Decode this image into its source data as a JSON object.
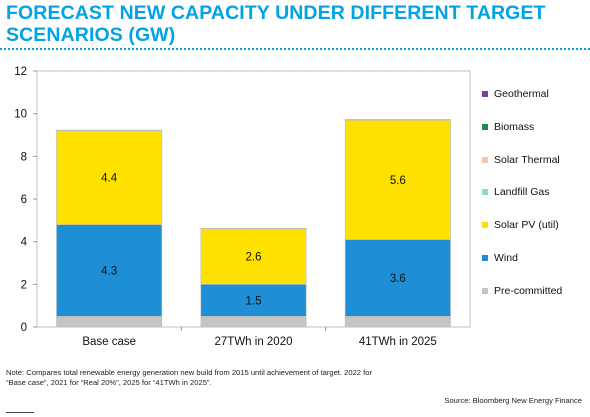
{
  "title": "FORECAST NEW CAPACITY UNDER DIFFERENT TARGET SCENARIOS (GW)",
  "note": "Note: Compares total renewable energy generation new build from 2015 until achievement of target.  2022 for “Base case”, 2021 for “Real 20%”, 2025 for “41TWh in 2025”.",
  "source": "Source: Bloomberg New Energy Finance",
  "colors": {
    "title": "#00a3e6",
    "Geothermal": "#7b3fa0",
    "Biomass": "#1f8a4c",
    "Solar Thermal": "#f5c7a8",
    "Landfill Gas": "#8fd6c4",
    "Solar PV (util)": "#ffe100",
    "Wind": "#1e8fd6",
    "Pre-committed": "#c4c4c4"
  },
  "chart_data": {
    "type": "bar",
    "stacked": true,
    "categories": [
      "Base case",
      "27TWh in 2020",
      "41TWh in 2025"
    ],
    "series": [
      {
        "name": "Pre-committed",
        "values": [
          0.5,
          0.5,
          0.5
        ]
      },
      {
        "name": "Wind",
        "values": [
          4.3,
          1.5,
          3.6
        ]
      },
      {
        "name": "Solar PV (util)",
        "values": [
          4.4,
          2.6,
          5.6
        ]
      },
      {
        "name": "Landfill Gas",
        "values": [
          0.03,
          0.03,
          0.03
        ]
      },
      {
        "name": "Solar Thermal",
        "values": [
          0.0,
          0.0,
          0.0
        ]
      },
      {
        "name": "Biomass",
        "values": [
          0.0,
          0.0,
          0.0
        ]
      },
      {
        "name": "Geothermal",
        "values": [
          0.0,
          0.0,
          0.0
        ]
      }
    ],
    "data_labels": {
      "Wind": [
        "4.3",
        "1.5",
        "3.6"
      ],
      "Solar PV (util)": [
        "4.4",
        "2.6",
        "5.6"
      ]
    },
    "legend_order": [
      "Geothermal",
      "Biomass",
      "Solar Thermal",
      "Landfill Gas",
      "Solar PV (util)",
      "Wind",
      "Pre-committed"
    ],
    "legend_position": "right",
    "ylim": [
      0,
      12
    ],
    "yticks": [
      0,
      2,
      4,
      6,
      8,
      10,
      12
    ],
    "grid": false,
    "xlabel": "",
    "ylabel": ""
  }
}
